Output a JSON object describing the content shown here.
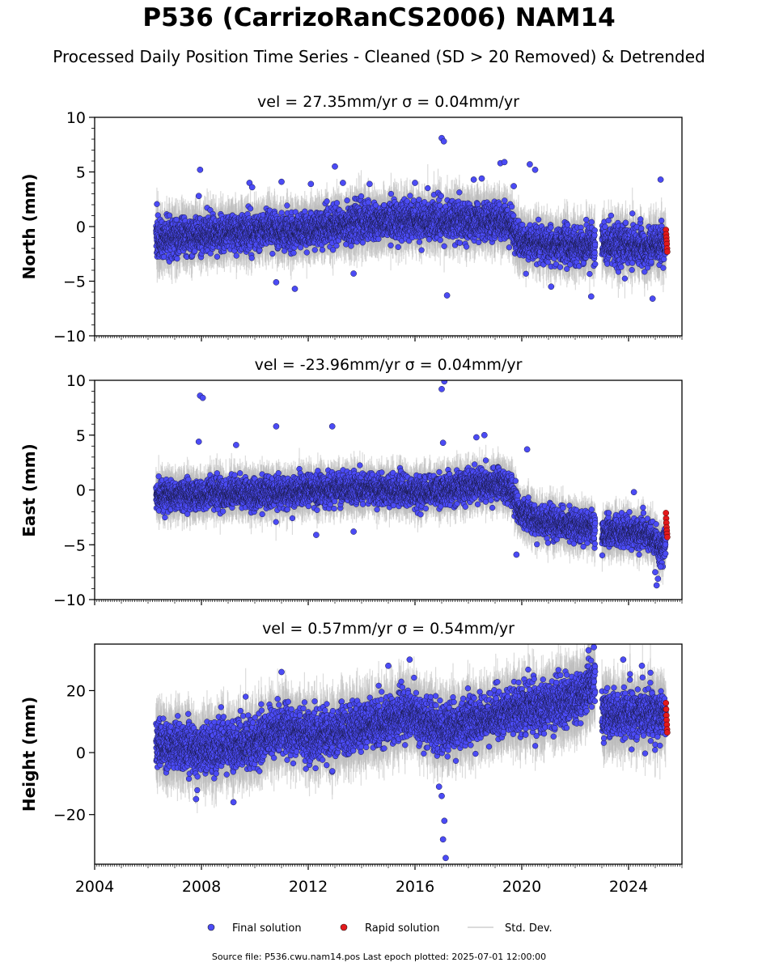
{
  "page": {
    "title": "P536 (CarrizoRanCS2006) NAM14",
    "subtitle": "Processed Daily Position Time Series - Cleaned (SD > 20 Removed) & Detrended",
    "source": "Source file: P536.cwu.nam14.pos  Last epoch plotted: 2025-07-01 12:00:00"
  },
  "chart_data": {
    "type": "scatter",
    "x_range": [
      2004.0,
      2026.0
    ],
    "x_ticks": [
      "2004",
      "2008",
      "2012",
      "2016",
      "2020",
      "2024"
    ],
    "x_tick_values": [
      2004,
      2008,
      2012,
      2016,
      2020,
      2024
    ],
    "legend": {
      "placement": "bottom-center",
      "entries": [
        {
          "label": "Final solution",
          "color": "#4b4bf5",
          "kind": "dot"
        },
        {
          "label": "Rapid solution",
          "color": "#e31a1c",
          "kind": "dot"
        },
        {
          "label": "Std. Dev.",
          "color": "#cfcfcf",
          "kind": "line"
        }
      ]
    },
    "colors": {
      "final": "#4b4bf5",
      "rapid": "#e31a1c",
      "errorbar": "#bdbdbd"
    },
    "data_span": {
      "start": 2006.3,
      "gap": [
        2022.75,
        2023.0
      ],
      "rapid_start": 2025.4,
      "end": 2025.5
    },
    "panels": [
      {
        "id": "north",
        "subtitle": "vel = 27.35mm/yr   σ = 0.04mm/yr",
        "ylabel": "North (mm)",
        "ylim": [
          -10,
          10
        ],
        "y_ticks": [
          10,
          5,
          0,
          -5,
          -10
        ],
        "y_tick_labels": [
          "10",
          "5",
          "0",
          "−5",
          "−10"
        ],
        "trend_x": [
          2006.3,
          2009.0,
          2012.0,
          2014.0,
          2016.0,
          2017.5,
          2019.5,
          2020.0,
          2021.5,
          2022.7,
          2023.0,
          2024.5,
          2025.5
        ],
        "trend_y": [
          -1.2,
          -0.6,
          -0.3,
          0.5,
          0.6,
          0.5,
          0.5,
          -1.5,
          -1.8,
          -1.8,
          -1.6,
          -1.8,
          -1.5
        ],
        "scatter_sd": 1.1,
        "rapid_values": [
          -0.3,
          -0.7,
          -1.0,
          -1.3,
          -1.6,
          -2.0,
          -2.3
        ],
        "outliers": [
          {
            "x": 2007.95,
            "y": 5.2
          },
          {
            "x": 2007.9,
            "y": 2.8
          },
          {
            "x": 2009.8,
            "y": 4.0
          },
          {
            "x": 2009.9,
            "y": 3.6
          },
          {
            "x": 2011.0,
            "y": 4.1
          },
          {
            "x": 2010.8,
            "y": -5.1
          },
          {
            "x": 2011.5,
            "y": -5.7
          },
          {
            "x": 2012.1,
            "y": 3.9
          },
          {
            "x": 2013.0,
            "y": 5.5
          },
          {
            "x": 2013.3,
            "y": 4.0
          },
          {
            "x": 2013.7,
            "y": -4.3
          },
          {
            "x": 2014.3,
            "y": 3.9
          },
          {
            "x": 2016.0,
            "y": 4.0
          },
          {
            "x": 2017.0,
            "y": 8.1
          },
          {
            "x": 2017.08,
            "y": 7.8
          },
          {
            "x": 2017.2,
            "y": -6.3
          },
          {
            "x": 2018.2,
            "y": 4.3
          },
          {
            "x": 2018.5,
            "y": 4.4
          },
          {
            "x": 2019.2,
            "y": 5.8
          },
          {
            "x": 2019.35,
            "y": 5.9
          },
          {
            "x": 2019.7,
            "y": 3.7
          },
          {
            "x": 2020.3,
            "y": 5.7
          },
          {
            "x": 2020.5,
            "y": 5.2
          },
          {
            "x": 2021.1,
            "y": -5.5
          },
          {
            "x": 2022.6,
            "y": -6.4
          },
          {
            "x": 2024.9,
            "y": -6.6
          },
          {
            "x": 2025.2,
            "y": 4.3
          }
        ]
      },
      {
        "id": "east",
        "subtitle": "vel = -23.96mm/yr   σ = 0.04mm/yr",
        "ylabel": "East (mm)",
        "ylim": [
          -10,
          10
        ],
        "y_ticks": [
          10,
          5,
          0,
          -5,
          -10
        ],
        "y_tick_labels": [
          "10",
          "5",
          "0",
          "−5",
          "−10"
        ],
        "trend_x": [
          2006.3,
          2010.0,
          2014.0,
          2016.0,
          2018.0,
          2019.2,
          2019.6,
          2019.9,
          2021.0,
          2022.7,
          2023.0,
          2024.0,
          2024.8,
          2025.2,
          2025.5
        ],
        "trend_y": [
          -0.5,
          -0.3,
          0.2,
          -0.2,
          0.3,
          0.5,
          0.2,
          -2.0,
          -3.0,
          -3.5,
          -3.8,
          -3.8,
          -4.0,
          -5.5,
          -4.0
        ],
        "scatter_sd": 0.9,
        "rapid_values": [
          -2.1,
          -2.6,
          -3.0,
          -3.4,
          -3.7,
          -4.0,
          -4.3
        ],
        "outliers": [
          {
            "x": 2007.95,
            "y": 8.6
          },
          {
            "x": 2008.05,
            "y": 8.4
          },
          {
            "x": 2007.9,
            "y": 4.4
          },
          {
            "x": 2009.3,
            "y": 4.1
          },
          {
            "x": 2010.8,
            "y": 5.8
          },
          {
            "x": 2012.9,
            "y": 5.8
          },
          {
            "x": 2012.3,
            "y": -4.1
          },
          {
            "x": 2013.7,
            "y": -3.8
          },
          {
            "x": 2017.0,
            "y": 9.2
          },
          {
            "x": 2017.1,
            "y": 9.9
          },
          {
            "x": 2017.05,
            "y": 4.3
          },
          {
            "x": 2018.3,
            "y": 4.8
          },
          {
            "x": 2018.6,
            "y": 5.0
          },
          {
            "x": 2020.2,
            "y": 3.7
          },
          {
            "x": 2019.8,
            "y": -5.9
          },
          {
            "x": 2024.2,
            "y": -0.2
          },
          {
            "x": 2025.0,
            "y": -7.5
          },
          {
            "x": 2025.05,
            "y": -8.7
          },
          {
            "x": 2025.1,
            "y": -8.1
          },
          {
            "x": 2025.2,
            "y": -7.0
          }
        ]
      },
      {
        "id": "height",
        "subtitle": "vel = 0.57mm/yr   σ = 0.54mm/yr",
        "ylabel": "Height (mm)",
        "ylim": [
          -36,
          35
        ],
        "y_ticks": [
          20,
          0,
          -20
        ],
        "y_tick_labels": [
          "20",
          "0",
          "−20"
        ],
        "trend_x": [
          2006.3,
          2008.0,
          2010.0,
          2011.0,
          2012.0,
          2014.0,
          2016.0,
          2017.0,
          2018.0,
          2020.0,
          2022.0,
          2022.7,
          2023.0,
          2025.5
        ],
        "trend_y": [
          3.0,
          1.0,
          3.0,
          8.0,
          5.0,
          8.0,
          12.0,
          7.0,
          10.0,
          14.0,
          17.0,
          22.0,
          13.0,
          12.0
        ],
        "scatter_sd": 5.0,
        "rapid_values": [
          16.0,
          14.0,
          12.0,
          10.5,
          9.0,
          7.5,
          6.5
        ],
        "outliers": [
          {
            "x": 2017.1,
            "y": -22.0
          },
          {
            "x": 2017.05,
            "y": -28.0
          },
          {
            "x": 2017.15,
            "y": -34.0
          },
          {
            "x": 2017.0,
            "y": -14.0
          },
          {
            "x": 2016.9,
            "y": -11.0
          },
          {
            "x": 2009.2,
            "y": -16.0
          },
          {
            "x": 2007.8,
            "y": -15.0
          },
          {
            "x": 2011.0,
            "y": 26.0
          },
          {
            "x": 2015.0,
            "y": 28.0
          },
          {
            "x": 2015.8,
            "y": 30.0
          },
          {
            "x": 2022.5,
            "y": 33.0
          },
          {
            "x": 2022.7,
            "y": 34.0
          },
          {
            "x": 2023.8,
            "y": 30.0
          },
          {
            "x": 2024.5,
            "y": 28.0
          }
        ]
      }
    ]
  }
}
